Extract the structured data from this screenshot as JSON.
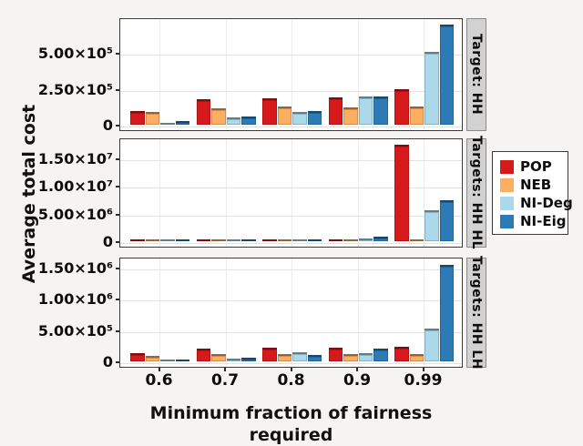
{
  "style": {
    "background": "#f5f4f2",
    "panel_background": "#ffffff",
    "panel_border": "#3c3c3c",
    "grid_color": "#e3e3e3",
    "strip_background": "#d2d2d2",
    "text_color": "#0d0d0d"
  },
  "chart_data": {
    "type": "bar",
    "title": "",
    "xlabel": "Minimum fraction of fairness required",
    "ylabel": "Average total cost",
    "categories": [
      "0.6",
      "0.7",
      "0.8",
      "0.9",
      "0.99"
    ],
    "grid": true,
    "legend": {
      "position": "right",
      "entries": [
        {
          "label": "POP",
          "color": "#d7191c"
        },
        {
          "label": "NEB",
          "color": "#fdae61"
        },
        {
          "label": "NI-Deg",
          "color": "#abd9e9"
        },
        {
          "label": "NI-Eig",
          "color": "#2c7bb6"
        }
      ]
    },
    "panels": [
      {
        "strip": "Target: HH",
        "ylim": [
          0,
          730000
        ],
        "yticks": [
          {
            "label": "5.00×10⁵",
            "value": 500000
          },
          {
            "label": "2.50×10⁵",
            "value": 250000
          },
          {
            "label": "0",
            "value": 0
          }
        ],
        "series": [
          {
            "name": "POP",
            "values": [
              95000,
              175000,
              185000,
              190000,
              250000
            ]
          },
          {
            "name": "NEB",
            "values": [
              90000,
              115000,
              125000,
              120000,
              125000
            ]
          },
          {
            "name": "NI-Deg",
            "values": [
              15000,
              50000,
              90000,
              195000,
              510000
            ]
          },
          {
            "name": "NI-Eig",
            "values": [
              25000,
              55000,
              95000,
              195000,
              700000
            ]
          }
        ]
      },
      {
        "strip": "Targets: HH HL",
        "ylim": [
          0,
          18200000
        ],
        "yticks": [
          {
            "label": "1.50×10⁷",
            "value": 15000000
          },
          {
            "label": "1.00×10⁷",
            "value": 10000000
          },
          {
            "label": "5.00×10⁶",
            "value": 5000000
          },
          {
            "label": "0",
            "value": 0
          }
        ],
        "series": [
          {
            "name": "POP",
            "values": [
              200000,
              300000,
              300000,
              350000,
              17450000
            ]
          },
          {
            "name": "NEB",
            "values": [
              130000,
              150000,
              150000,
              200000,
              200000
            ]
          },
          {
            "name": "NI-Deg",
            "values": [
              100000,
              130000,
              160000,
              550000,
              5600000
            ]
          },
          {
            "name": "NI-Eig",
            "values": [
              100000,
              160000,
              250000,
              800000,
              7400000
            ]
          }
        ]
      },
      {
        "strip": "Targets: HH LH",
        "ylim": [
          0,
          1630000
        ],
        "yticks": [
          {
            "label": "1.50×10⁶",
            "value": 1500000
          },
          {
            "label": "1.00×10⁶",
            "value": 1000000
          },
          {
            "label": "5.00×10⁵",
            "value": 500000
          },
          {
            "label": "0",
            "value": 0
          }
        ],
        "series": [
          {
            "name": "POP",
            "values": [
              135000,
              210000,
              215000,
              215000,
              230000
            ]
          },
          {
            "name": "NEB",
            "values": [
              85000,
              110000,
              115000,
              110000,
              120000
            ]
          },
          {
            "name": "NI-Deg",
            "values": [
              20000,
              45000,
              145000,
              135000,
              525000
            ]
          },
          {
            "name": "NI-Eig",
            "values": [
              20000,
              55000,
              105000,
              210000,
              1540000
            ]
          }
        ]
      }
    ]
  }
}
